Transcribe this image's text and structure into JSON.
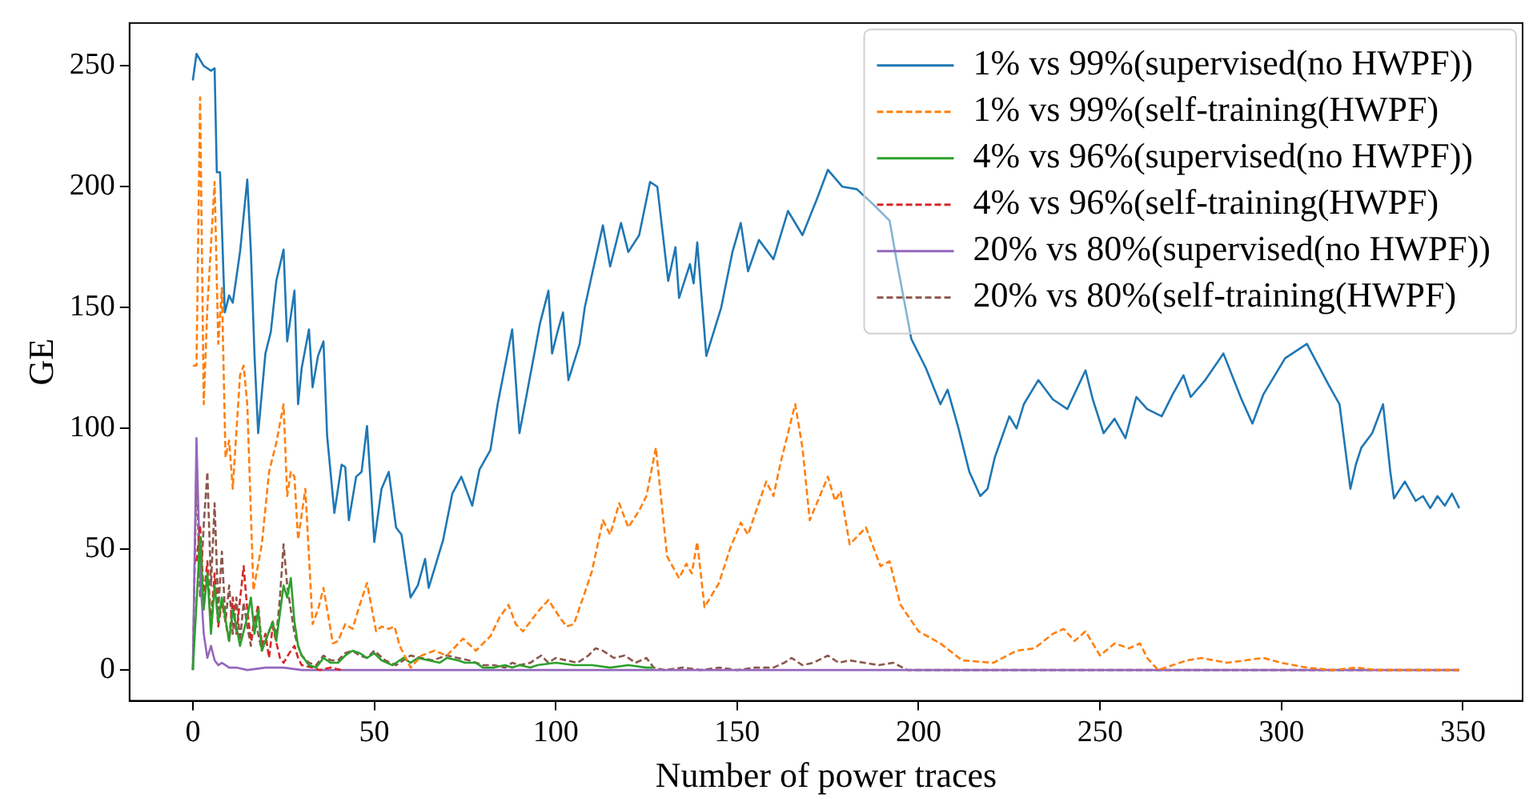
{
  "chart_data": {
    "type": "line",
    "xlabel": "Number of power traces",
    "ylabel": "GE",
    "xlim": [
      -17.45,
      366.45
    ],
    "ylim": [
      -12.75,
      267.75
    ],
    "xticks": [
      0,
      50,
      100,
      150,
      200,
      250,
      300,
      350
    ],
    "yticks": [
      0,
      50,
      100,
      150,
      200,
      250
    ],
    "grid": false,
    "legend": "top right",
    "marker": "none",
    "series": [
      {
        "name": "1% vs 99%(supervised(no HWPF))",
        "color": "#1f77b4",
        "line_style": "solid",
        "x": [
          0,
          1,
          3,
          5,
          6,
          6.6,
          7.5,
          8.8,
          10,
          11,
          13,
          15,
          16,
          17,
          18,
          20,
          21.5,
          23,
          25,
          26,
          28,
          29,
          30,
          32,
          33,
          34.5,
          36,
          37,
          39,
          41,
          42,
          43,
          45,
          46.5,
          48,
          50,
          52,
          54,
          56,
          57.5,
          60,
          62,
          64,
          65,
          67,
          69,
          71.5,
          74,
          77,
          79,
          82,
          84,
          88,
          90,
          92,
          95.6,
          98,
          99,
          100.5,
          102,
          103.5,
          106.6,
          108,
          109.6,
          113,
          115,
          116.5,
          118,
          120,
          123,
          126,
          128,
          131,
          133,
          134,
          137,
          138,
          139,
          141.5,
          145.6,
          148.7,
          151,
          153,
          156,
          160,
          164,
          168,
          172,
          175,
          179,
          183,
          188,
          192,
          194,
          198,
          202,
          206,
          208,
          211,
          214,
          217,
          219,
          221,
          225,
          227,
          229,
          233,
          237,
          241,
          246,
          248,
          251,
          254,
          257,
          260,
          263,
          267,
          270,
          273,
          275,
          279,
          284,
          289,
          292,
          295,
          301,
          307,
          313,
          316,
          319,
          320.5,
          322,
          325,
          328,
          330,
          331,
          334,
          337,
          339,
          341,
          343,
          345,
          347,
          349
        ],
        "values": [
          244,
          255,
          250,
          248,
          249,
          206,
          206,
          148,
          155,
          152,
          173,
          203,
          173,
          130,
          98,
          131,
          140,
          161,
          174,
          136,
          157,
          110,
          125,
          141,
          117,
          130,
          136,
          97,
          65,
          85,
          84,
          62,
          80,
          82,
          101,
          53,
          75,
          82,
          59,
          56,
          30,
          35,
          46,
          34,
          44,
          54,
          73,
          80,
          68,
          83,
          91,
          110,
          141,
          98,
          114,
          143,
          157,
          131,
          140,
          148,
          120,
          135,
          150,
          161,
          184,
          167,
          176,
          185,
          173,
          180,
          202,
          200,
          161,
          175,
          154,
          168,
          160,
          177,
          130,
          150,
          173,
          185,
          165,
          178,
          170,
          190,
          180,
          195,
          207,
          200,
          199,
          192,
          186,
          169,
          137,
          125,
          110,
          116,
          100,
          82,
          72,
          75,
          88,
          105,
          100,
          110,
          120,
          112,
          108,
          124,
          112,
          98,
          104,
          96,
          113,
          108,
          105,
          114,
          122,
          113,
          120,
          131,
          112,
          102,
          114,
          129,
          135,
          118,
          110,
          75,
          85,
          92,
          98,
          110,
          82,
          71,
          78,
          70,
          72,
          67,
          72,
          68,
          73,
          67
        ]
      },
      {
        "name": "1% vs 99%(self-training(HWPF)",
        "color": "#ff7f0e",
        "line_style": "dashed",
        "x": [
          0,
          1,
          2,
          3,
          4,
          6,
          7,
          8,
          9,
          10,
          11,
          13,
          14,
          15,
          16.7,
          19,
          21,
          23,
          25,
          26,
          27,
          28,
          29,
          31,
          33,
          34.5,
          36,
          38.6,
          40,
          42,
          44,
          46,
          48,
          50.5,
          52,
          54,
          55.6,
          57,
          60,
          63,
          66.6,
          70,
          74.5,
          78,
          82,
          84.6,
          87,
          89,
          91,
          95,
          98,
          101,
          103,
          105,
          108,
          110,
          113,
          115,
          117.5,
          120,
          123,
          125,
          127.6,
          130.7,
          134,
          136,
          137.5,
          139,
          141,
          145,
          148,
          151,
          153,
          158,
          160,
          162,
          166,
          168,
          170,
          175,
          177,
          178.5,
          181,
          185.5,
          189.5,
          192,
          195,
          200,
          206,
          212,
          220.6,
          227,
          232,
          237,
          240,
          243,
          246,
          250,
          254,
          258,
          261,
          263,
          266,
          270,
          274,
          278,
          285,
          290,
          295,
          300,
          307,
          314,
          321,
          326,
          333,
          349
        ],
        "values": [
          126,
          126,
          237,
          110,
          150,
          202,
          135,
          158,
          88,
          95,
          75,
          122,
          126,
          110,
          33,
          52,
          82,
          94,
          110,
          72,
          82,
          80,
          54,
          75,
          19,
          25,
          34,
          11,
          12,
          19,
          17,
          27,
          36,
          16,
          18,
          17,
          18,
          10,
          1,
          6,
          8,
          6,
          13,
          8,
          14,
          22,
          27,
          19,
          16,
          24,
          29,
          22,
          18,
          19,
          32,
          41,
          62,
          56,
          69,
          59,
          66,
          72,
          92,
          47,
          38,
          44,
          40,
          53,
          26,
          36,
          50,
          61,
          56,
          78,
          72,
          86,
          110,
          92,
          62,
          80,
          70,
          74,
          52,
          59,
          43,
          45,
          27,
          16,
          11,
          4,
          3,
          8,
          9,
          15,
          17,
          12,
          16,
          6,
          11,
          9,
          11,
          5,
          0,
          2,
          4,
          5,
          3,
          4,
          5,
          3,
          1,
          0,
          1,
          0,
          0,
          0
        ]
      },
      {
        "name": "4% vs 96%(supervised(no HWPF))",
        "color": "#2ca02c",
        "line_style": "solid",
        "x": [
          0,
          2,
          3,
          4,
          5,
          6,
          7,
          8,
          10,
          11,
          12,
          13,
          15,
          16,
          17,
          18,
          19,
          20,
          22,
          23,
          25,
          26,
          27,
          28,
          29,
          30,
          32,
          34,
          36,
          38,
          40,
          42,
          44,
          46,
          48,
          50,
          52,
          55,
          58,
          60,
          62,
          65,
          68,
          70,
          73,
          75,
          78,
          80,
          83,
          86,
          88,
          90,
          93,
          95,
          100,
          105,
          110,
          115,
          120,
          125,
          127
        ],
        "values": [
          0,
          55,
          25,
          40,
          15,
          35,
          20,
          30,
          12,
          25,
          18,
          10,
          22,
          30,
          15,
          25,
          8,
          12,
          20,
          12,
          35,
          30,
          38,
          20,
          10,
          6,
          2,
          1,
          5,
          3,
          3,
          6,
          8,
          7,
          5,
          7,
          4,
          2,
          5,
          3,
          5,
          4,
          3,
          5,
          4,
          3,
          3,
          1,
          1,
          2,
          1,
          2,
          1,
          2,
          3,
          2,
          2,
          1,
          2,
          1,
          1
        ]
      },
      {
        "name": "4% vs 96%(self-training(HWPF)",
        "color": "#d62728",
        "line_style": "dashed",
        "x": [
          1,
          2,
          3,
          4,
          5,
          6,
          7,
          8,
          10,
          11,
          12,
          14,
          15,
          16,
          18,
          19,
          20,
          21,
          22,
          24,
          25,
          27,
          28,
          29,
          30,
          33,
          35,
          38,
          41
        ],
        "values": [
          45,
          60,
          30,
          45,
          20,
          40,
          18,
          28,
          12,
          30,
          15,
          43,
          25,
          12,
          27,
          10,
          15,
          5,
          18,
          5,
          3,
          8,
          10,
          5,
          2,
          1,
          0,
          1,
          0
        ]
      },
      {
        "name": "20% vs 80%(supervised(no HWPF))",
        "color": "#9467bd",
        "line_style": "solid",
        "x": [
          0,
          1,
          2,
          3,
          4,
          5,
          6,
          7,
          8,
          10,
          12,
          15,
          20,
          25,
          30,
          349
        ],
        "values": [
          0,
          96,
          40,
          15,
          5,
          10,
          4,
          2,
          3,
          1,
          1,
          0,
          1,
          1,
          0,
          0
        ]
      },
      {
        "name": "20% vs 80%(self-training(HWPF)",
        "color": "#8c564b",
        "line_style": "dashed",
        "x": [
          0,
          1,
          2,
          3,
          4,
          5,
          6,
          7,
          8,
          9,
          10,
          11,
          12,
          13,
          14,
          15,
          16,
          17,
          18,
          19,
          20,
          22,
          23,
          24,
          25,
          26,
          27,
          28,
          29,
          30,
          32,
          34,
          36,
          38,
          40,
          42,
          44,
          46,
          48,
          50,
          53,
          56,
          60,
          63,
          66,
          70,
          73,
          76,
          80,
          83,
          86,
          88,
          90,
          93,
          96,
          98,
          100,
          103,
          106,
          109,
          111,
          113,
          116,
          119,
          122,
          125,
          127,
          130,
          135,
          140,
          145,
          150,
          155,
          160,
          163,
          165,
          168,
          171,
          175,
          178,
          181,
          185,
          189,
          193,
          197,
          349
        ],
        "values": [
          0,
          84,
          30,
          60,
          82,
          35,
          69,
          25,
          49,
          20,
          35,
          15,
          30,
          12,
          28,
          18,
          10,
          22,
          15,
          8,
          12,
          20,
          14,
          30,
          52,
          35,
          25,
          15,
          10,
          6,
          3,
          2,
          6,
          4,
          4,
          7,
          8,
          6,
          5,
          8,
          4,
          2,
          6,
          5,
          4,
          6,
          5,
          4,
          2,
          2,
          1,
          3,
          2,
          3,
          6,
          3,
          5,
          4,
          3,
          6,
          9,
          8,
          5,
          6,
          3,
          5,
          1,
          0,
          1,
          0,
          1,
          0,
          1,
          1,
          3,
          5,
          2,
          3,
          6,
          3,
          4,
          3,
          2,
          3,
          0,
          0
        ]
      }
    ]
  }
}
